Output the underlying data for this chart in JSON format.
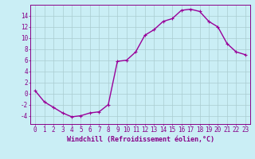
{
  "x": [
    0,
    1,
    2,
    3,
    4,
    5,
    6,
    7,
    8,
    9,
    10,
    11,
    12,
    13,
    14,
    15,
    16,
    17,
    18,
    19,
    20,
    21,
    22,
    23
  ],
  "y": [
    0.5,
    -1.5,
    -2.5,
    -3.5,
    -4.2,
    -4.0,
    -3.5,
    -3.3,
    -2.0,
    5.8,
    6.0,
    7.5,
    10.5,
    11.5,
    13.0,
    13.5,
    15.0,
    15.2,
    14.8,
    13.0,
    12.0,
    9.0,
    7.5,
    7.0
  ],
  "background_color": "#caeef5",
  "line_color": "#990099",
  "marker_color": "#990099",
  "grid_color": "#aaccd0",
  "xlabel": "Windchill (Refroidissement éolien,°C)",
  "ylabel_ticks": [
    -4,
    -2,
    0,
    2,
    4,
    6,
    8,
    10,
    12,
    14
  ],
  "xlim": [
    -0.5,
    23.5
  ],
  "ylim": [
    -5.5,
    16.0
  ],
  "xticks": [
    0,
    1,
    2,
    3,
    4,
    5,
    6,
    7,
    8,
    9,
    10,
    11,
    12,
    13,
    14,
    15,
    16,
    17,
    18,
    19,
    20,
    21,
    22,
    23
  ],
  "axis_color": "#880088",
  "tick_color": "#880088",
  "label_color": "#880088",
  "font_size_xlabel": 6.0,
  "font_size_ticks": 5.5,
  "linewidth": 1.0,
  "markersize": 3.5,
  "markeredgewidth": 0.8
}
